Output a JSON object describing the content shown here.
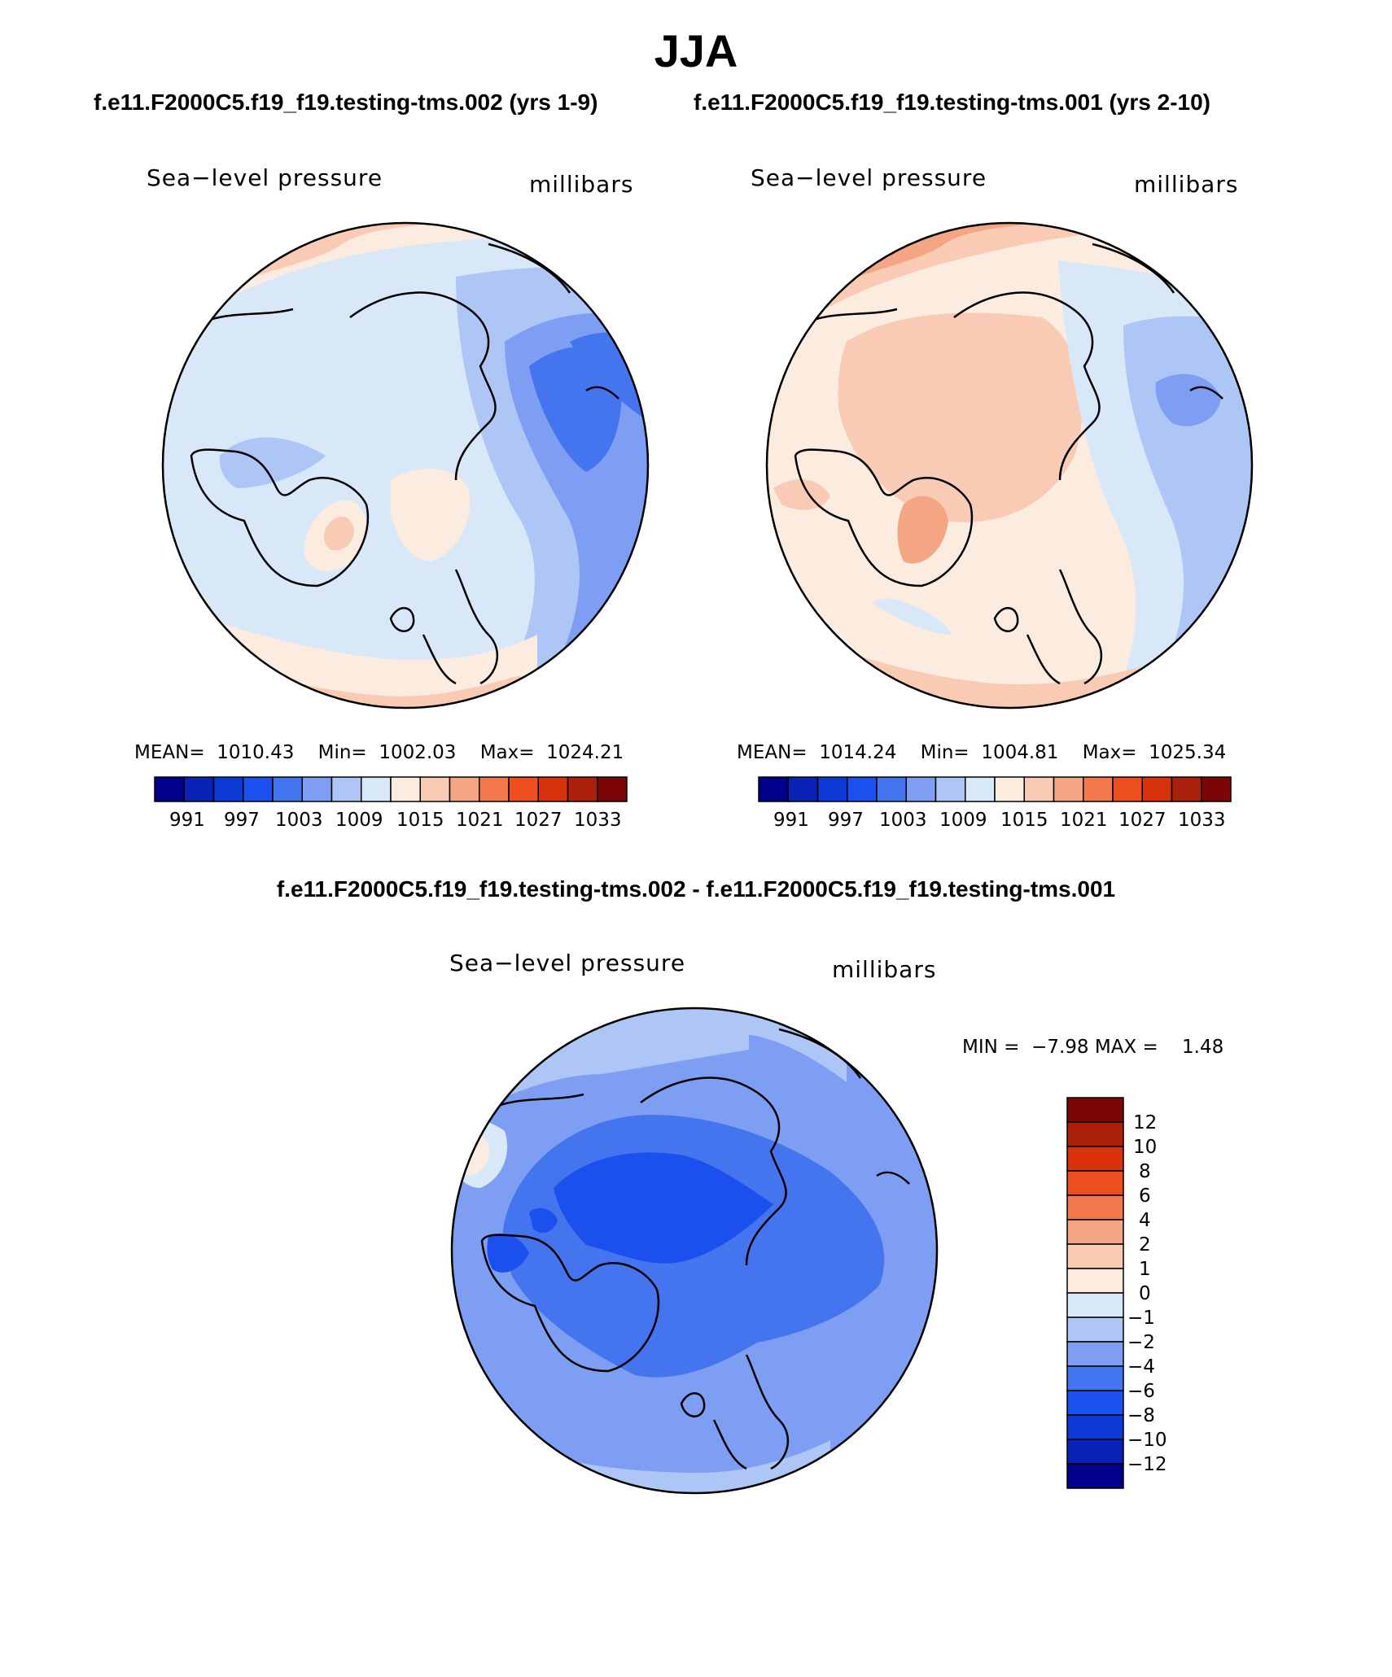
{
  "figure": {
    "season": "JJA"
  },
  "panels": [
    {
      "case_title": "f.e11.F2000C5.f19_f19.testing-tms.002 (yrs 1-9)",
      "variable": "Sea−level pressure",
      "units": "millibars",
      "stats": {
        "mean_label": "MEAN=",
        "mean": "1010.43",
        "min_label": "Min=",
        "min": "1002.03",
        "max_label": "Max=",
        "max": "1024.21"
      }
    },
    {
      "case_title": "f.e11.F2000C5.f19_f19.testing-tms.001 (yrs 2-10)",
      "variable": "Sea−level pressure",
      "units": "millibars",
      "stats": {
        "mean_label": "MEAN=",
        "mean": "1014.24",
        "min_label": "Min=",
        "min": "1004.81",
        "max_label": "Max=",
        "max": "1025.34"
      }
    }
  ],
  "abs_colorbar": {
    "colors": [
      "#00008b",
      "#0a21b5",
      "#0b3ad5",
      "#1c50ee",
      "#4474ee",
      "#7d9ef2",
      "#adc6f6",
      "#d8e8f9",
      "#fcebdf",
      "#f9cbb4",
      "#f4a584",
      "#f3794d",
      "#ed4f20",
      "#d6320c",
      "#ab200a",
      "#7c0606"
    ],
    "labels": [
      "991",
      "997",
      "1003",
      "1009",
      "1015",
      "1021",
      "1027",
      "1033"
    ]
  },
  "difference": {
    "title": "f.e11.F2000C5.f19_f19.testing-tms.002 - f.e11.F2000C5.f19_f19.testing-tms.001",
    "variable": "Sea−level pressure",
    "units": "millibars",
    "min_label": "MIN =",
    "min": "−7.98",
    "max_label": "MAX =",
    "max": "1.48",
    "colorbar": {
      "colors": [
        "#7c0606",
        "#ab200a",
        "#d6320c",
        "#ed4f20",
        "#f3794d",
        "#f4a584",
        "#f9cbb4",
        "#fcebdf",
        "#d8e8f9",
        "#adc6f6",
        "#7d9ef2",
        "#4474ee",
        "#1c50ee",
        "#0b3ad5",
        "#0a21b5",
        "#00008b"
      ],
      "labels": [
        "12",
        "10",
        "8",
        "6",
        "4",
        "2",
        "1",
        "0",
        "−1",
        "−2",
        "−4",
        "−6",
        "−8",
        "−10",
        "−12"
      ]
    }
  },
  "legend_swatch_colors": {
    "pos_light": "#fcebdf",
    "pos_2": "#f9cbb4",
    "pos_3": "#f4a584",
    "pos_4": "#f3794d",
    "neg_light": "#d8e8f9",
    "neg_2": "#adc6f6",
    "neg_3": "#7d9ef2",
    "neg_4": "#4474ee",
    "neg_5": "#1c50ee"
  }
}
